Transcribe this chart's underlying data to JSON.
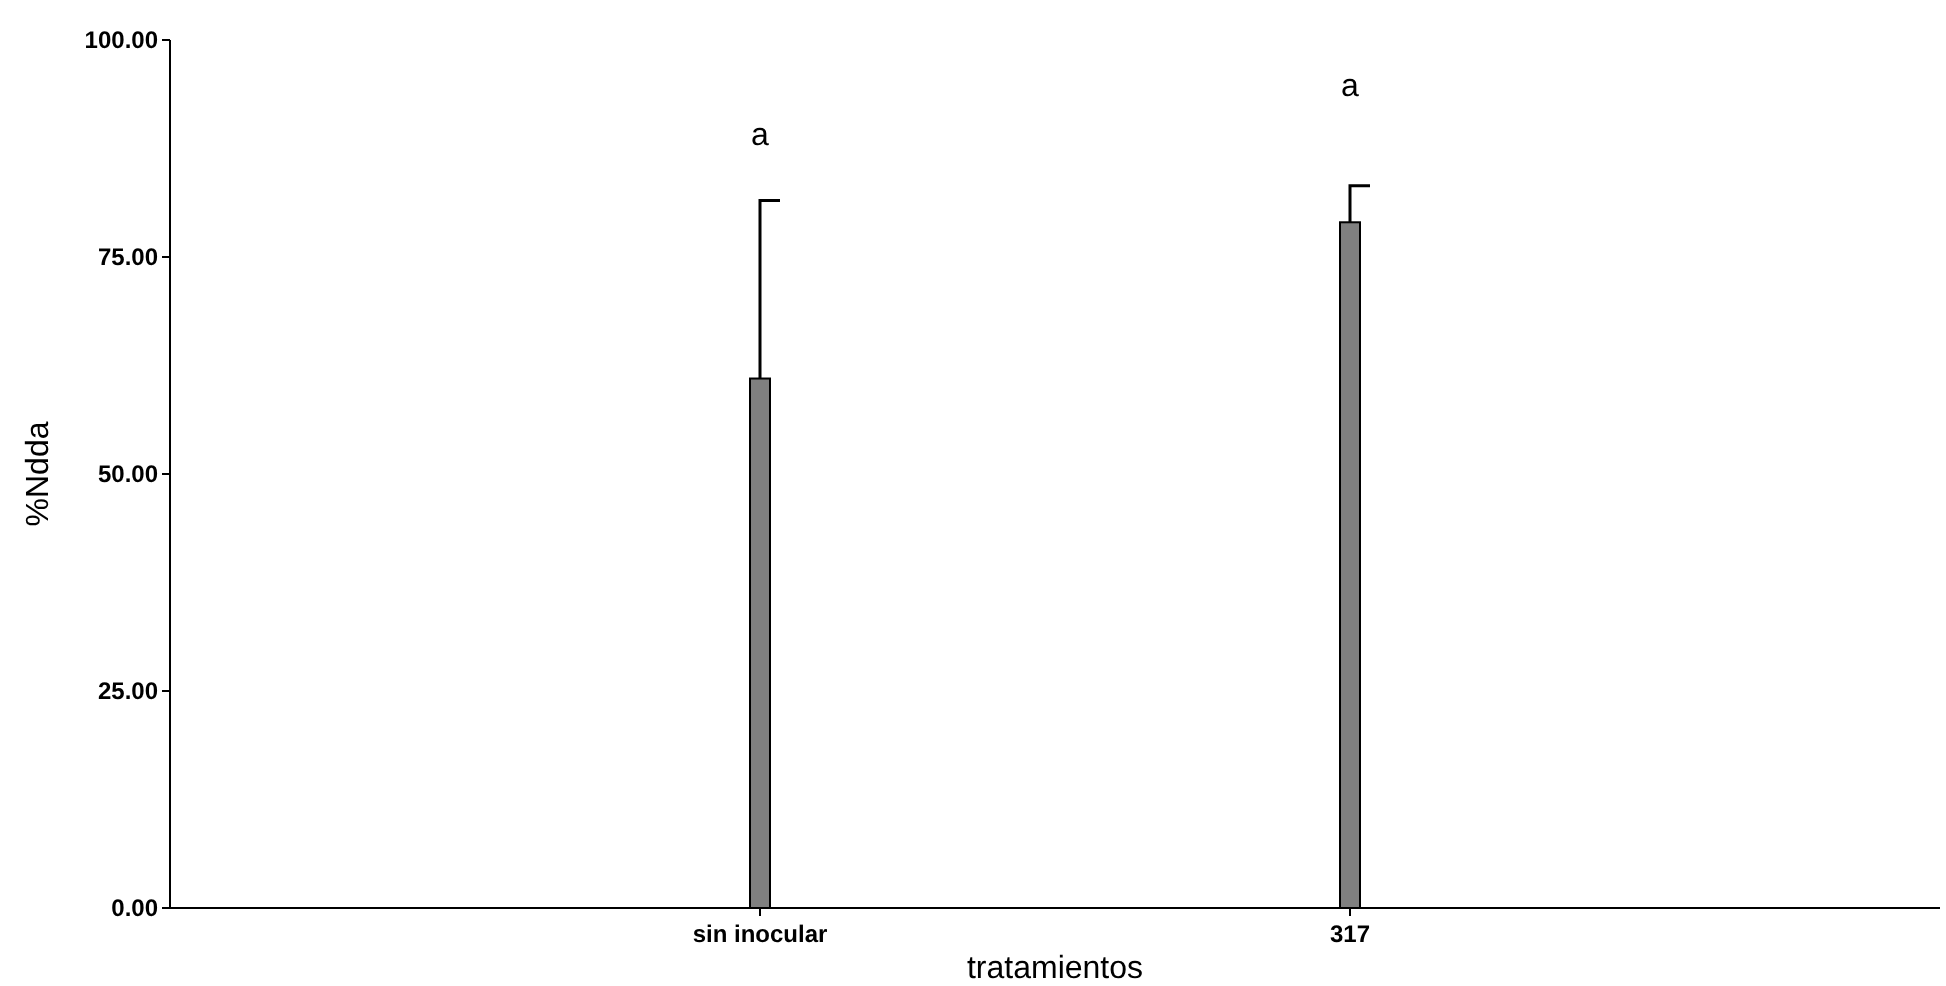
{
  "chart_data": {
    "type": "bar",
    "xlabel": "tratamientos",
    "ylabel": "%Ndda",
    "categories": [
      "sin inocular",
      "317"
    ],
    "values": [
      61,
      79
    ],
    "errors": [
      [
        61,
        81.5
      ],
      [
        79,
        83.2
      ]
    ],
    "color": "#808080",
    "ylim": [
      0,
      100
    ],
    "yticks": [
      {
        "value": 0,
        "label": "0.00"
      },
      {
        "value": 25,
        "label": "25.00"
      },
      {
        "value": 50,
        "label": "50.00"
      },
      {
        "value": 75,
        "label": "75.00"
      },
      {
        "value": 100,
        "label": "100.00"
      }
    ],
    "annotations": [
      "a",
      "a"
    ]
  }
}
